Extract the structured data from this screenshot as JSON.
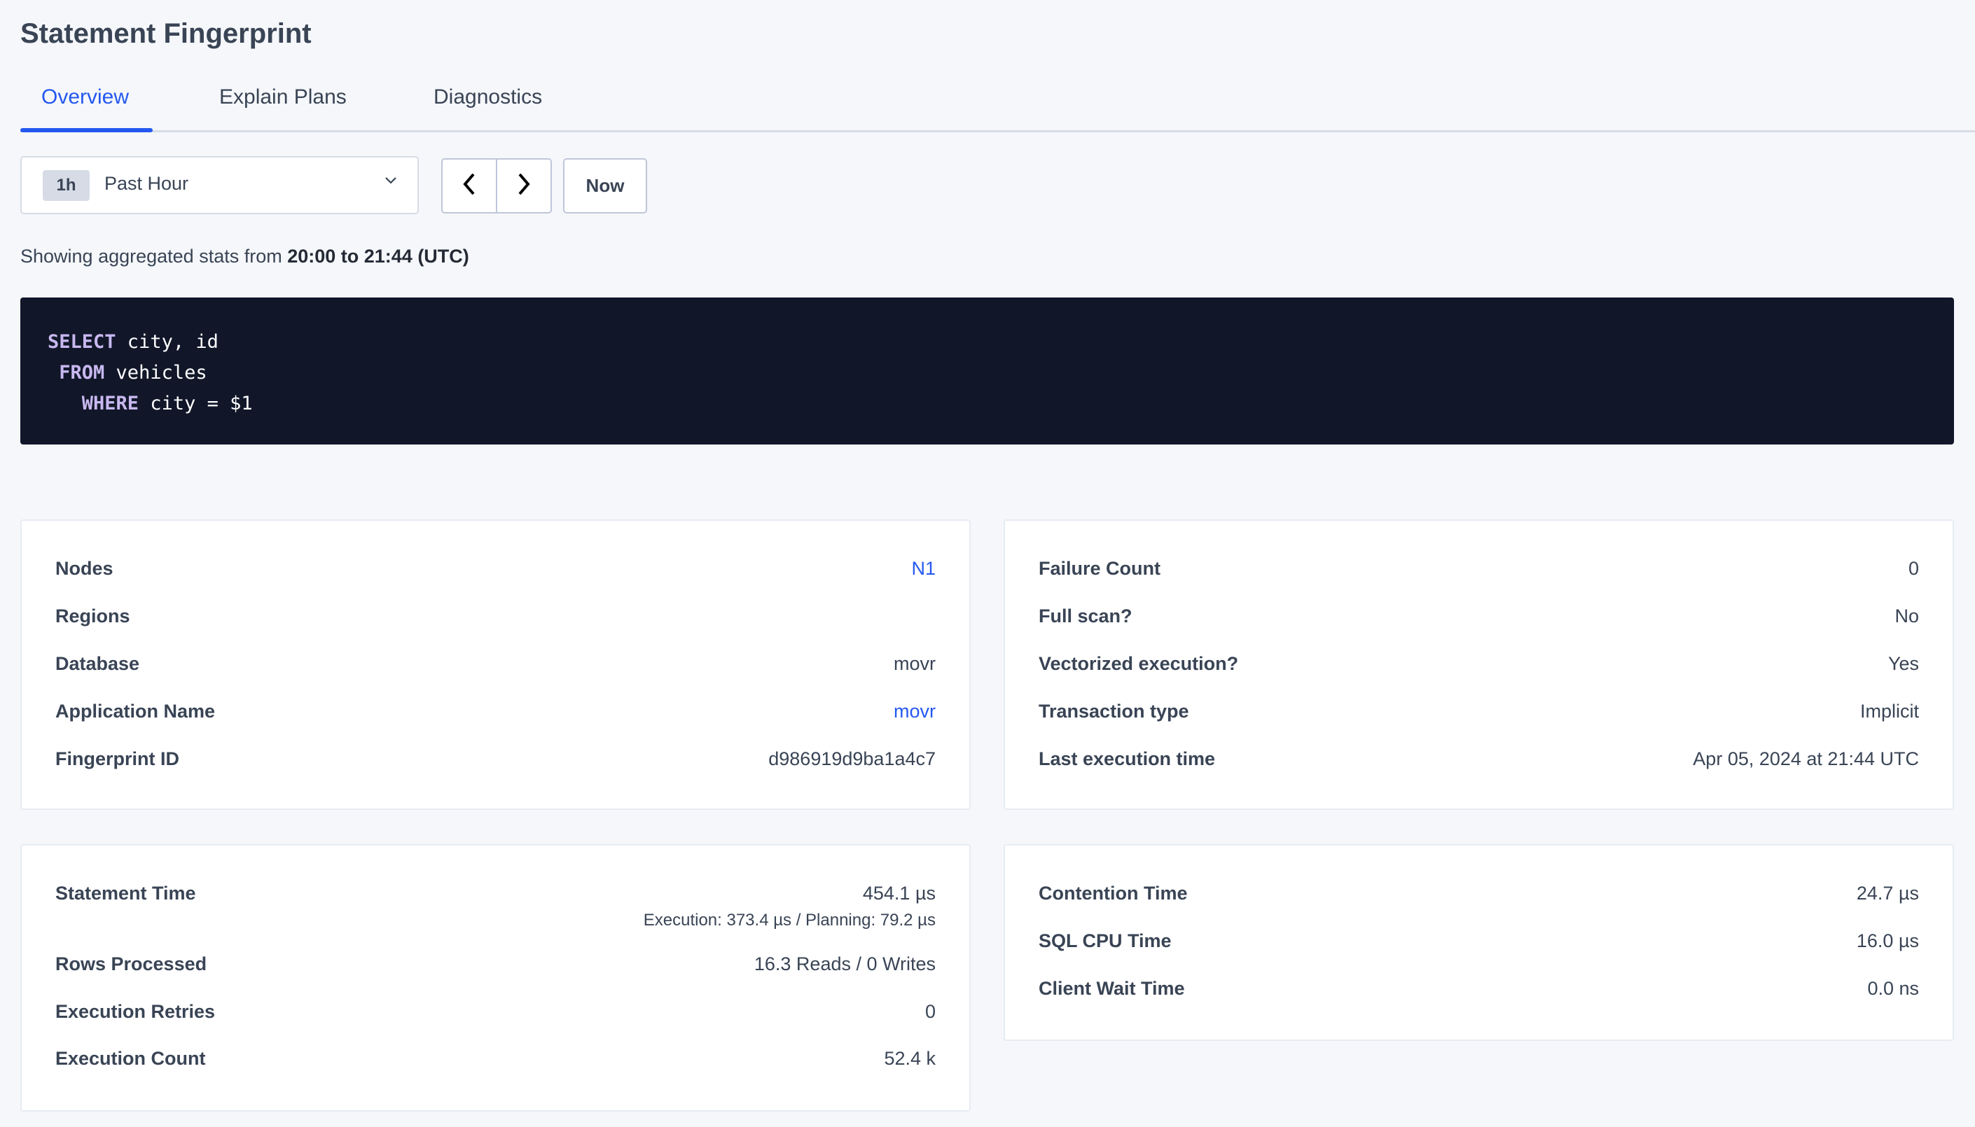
{
  "header": {
    "title": "Statement Fingerprint"
  },
  "tabs": [
    {
      "label": "Overview",
      "active": true
    },
    {
      "label": "Explain Plans"
    },
    {
      "label": "Diagnostics"
    }
  ],
  "time_picker": {
    "badge": "1h",
    "selected": "Past Hour",
    "prev_icon": "chevron-left-icon",
    "next_icon": "chevron-right-icon",
    "now_label": "Now"
  },
  "summary": {
    "prefix": "Showing aggregated stats from ",
    "range": "20:00 to 21:44 (UTC)"
  },
  "sql": {
    "lines": [
      {
        "indent": "",
        "keyword": "SELECT",
        "rest": " city, id"
      },
      {
        "indent": " ",
        "keyword": "FROM",
        "rest": " vehicles"
      },
      {
        "indent": "   ",
        "keyword": "WHERE",
        "rest": " city = $1"
      }
    ]
  },
  "details_left": [
    {
      "label": "Nodes",
      "value": "N1",
      "link": true
    },
    {
      "label": "Regions",
      "value": ""
    },
    {
      "label": "Database",
      "value": "movr"
    },
    {
      "label": "Application Name",
      "value": "movr",
      "link": true
    },
    {
      "label": "Fingerprint ID",
      "value": "d986919d9ba1a4c7"
    }
  ],
  "details_right": [
    {
      "label": "Failure Count",
      "value": "0"
    },
    {
      "label": "Full scan?",
      "value": "No"
    },
    {
      "label": "Vectorized execution?",
      "value": "Yes"
    },
    {
      "label": "Transaction type",
      "value": "Implicit"
    },
    {
      "label": "Last execution time",
      "value": "Apr 05, 2024 at 21:44 UTC"
    }
  ],
  "stats_left": [
    {
      "label": "Statement Time",
      "value": "454.1 µs",
      "sub": "Execution: 373.4 µs / Planning: 79.2 µs"
    },
    {
      "label": "Rows Processed",
      "value": "16.3 Reads / 0 Writes"
    },
    {
      "label": "Execution Retries",
      "value": "0"
    },
    {
      "label": "Execution Count",
      "value": "52.4 k"
    }
  ],
  "stats_right": [
    {
      "label": "Contention Time",
      "value": "24.7 µs"
    },
    {
      "label": "SQL CPU Time",
      "value": "16.0 µs"
    },
    {
      "label": "Client Wait Time",
      "value": "0.0 ns"
    }
  ],
  "colors": {
    "accent": "#2458f0",
    "code_bg": "#111729",
    "keyword": "#c8b8f0",
    "text": "#394455"
  }
}
